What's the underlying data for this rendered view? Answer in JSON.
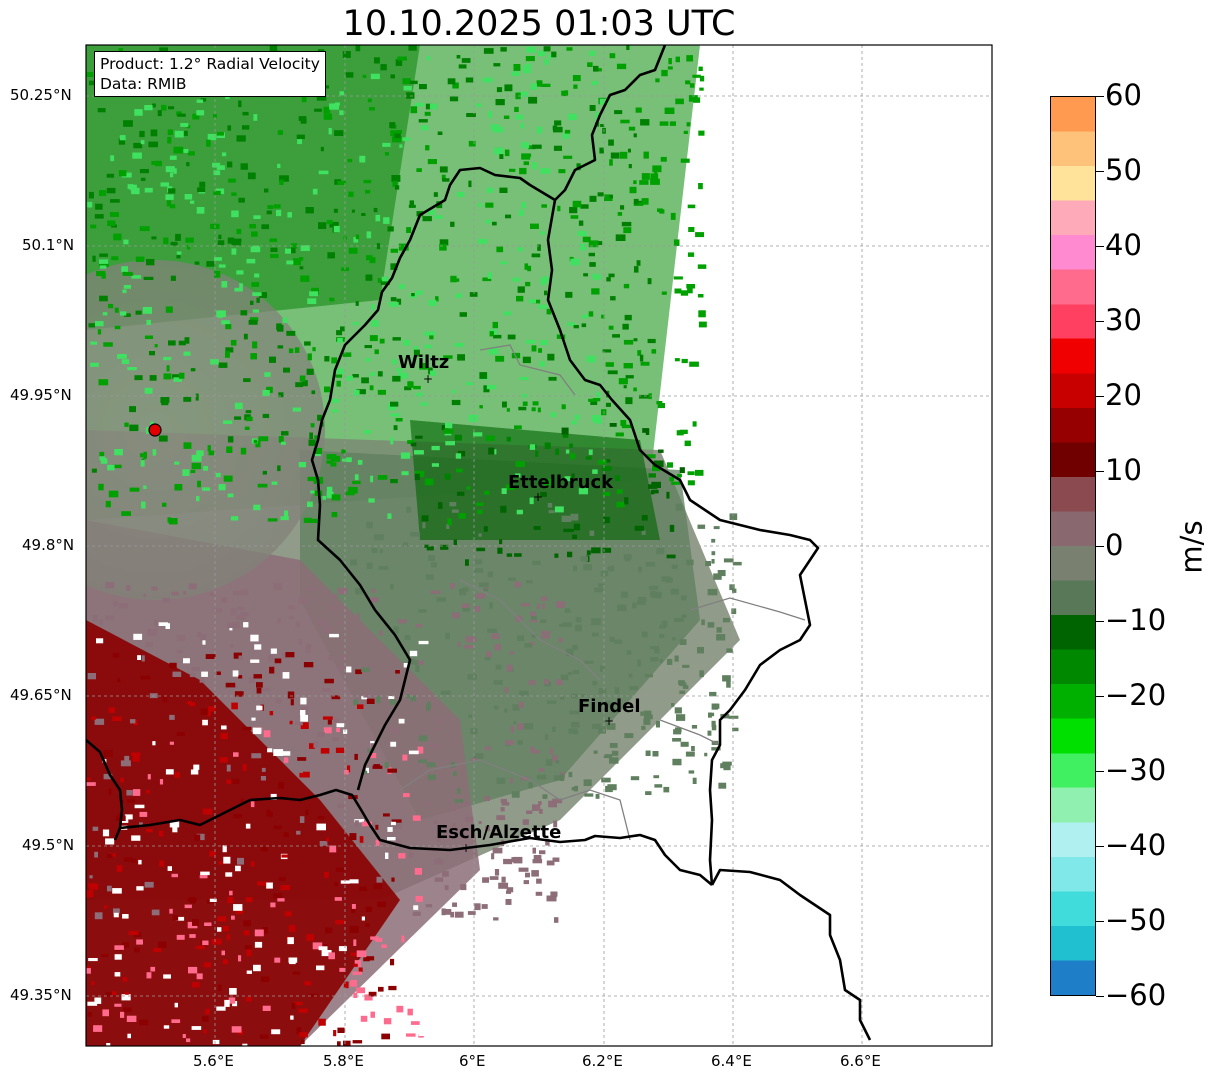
{
  "title": "10.10.2025 01:03 UTC",
  "info": {
    "product": "Product: 1.2° Radial Velocity",
    "data": "Data: RMIB"
  },
  "lat_ticks": [
    "50.25°N",
    "50.1°N",
    "49.95°N",
    "49.8°N",
    "49.65°N",
    "49.5°N",
    "49.35°N"
  ],
  "lon_ticks": [
    "5.6°E",
    "5.8°E",
    "6°E",
    "6.2°E",
    "6.4°E",
    "6.6°E"
  ],
  "cities": [
    {
      "name": "Wiltz",
      "lon": 5.92,
      "lat": 49.966
    },
    {
      "name": "Ettelbruck",
      "lon": 6.1,
      "lat": 49.848
    },
    {
      "name": "Findel",
      "lon": 6.21,
      "lat": 49.627
    },
    {
      "name": "Esch/Alzette",
      "lon": 5.98,
      "lat": 49.497
    }
  ],
  "radar_site": {
    "lon": 5.505,
    "lat": 49.915
  },
  "colorbar": {
    "min": -60,
    "max": 60,
    "ticks": [
      "60",
      "50",
      "40",
      "30",
      "20",
      "10",
      "0",
      "−10",
      "−20",
      "−30",
      "−40",
      "−50",
      "−60"
    ],
    "unit": "m/s",
    "colors": [
      "#ff9a50",
      "#ffc27a",
      "#ffe39a",
      "#ffaab9",
      "#ff8ad0",
      "#ff6b8d",
      "#ff4060",
      "#f00000",
      "#c80000",
      "#960000",
      "#700000",
      "#8a4a50",
      "#8a6870",
      "#7a8070",
      "#587858",
      "#006400",
      "#008800",
      "#00b000",
      "#00e000",
      "#40f060",
      "#90f0b0",
      "#b0f0f0",
      "#80e8e8",
      "#40dcdc",
      "#20c0d0",
      "#1e7fc8"
    ]
  }
}
